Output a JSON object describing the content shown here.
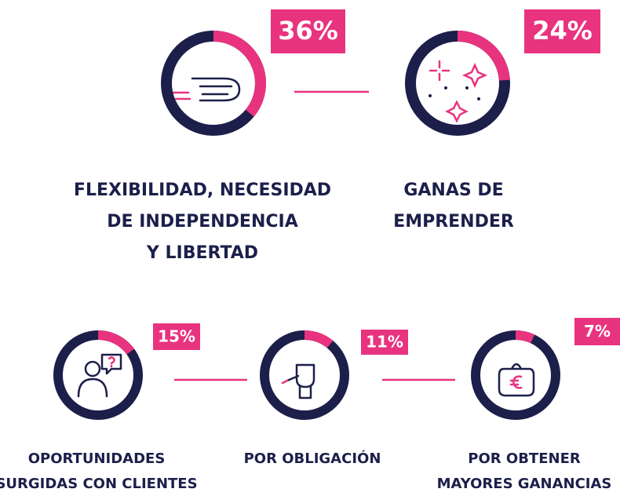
{
  "chart_data": {
    "type": "donut",
    "categories": [
      [
        "FLEXIBILIDAD, NECESIDAD",
        "DE INDEPENDENCIA",
        "Y LIBERTAD"
      ],
      [
        "GANAS DE",
        "EMPRENDER"
      ],
      [
        "OPORTUNIDADES",
        "SURGIDAS CON CLIENTES"
      ],
      [
        "POR OBLIGACIÓN"
      ],
      [
        "POR OBTENER",
        "MAYORES GANANCIAS"
      ]
    ],
    "values": [
      36,
      24,
      15,
      11,
      7
    ],
    "value_labels": [
      "36%",
      "24%",
      "15%",
      "11%",
      "7%"
    ],
    "color": "#e8337f",
    "track_color": "#1c1f4a"
  }
}
